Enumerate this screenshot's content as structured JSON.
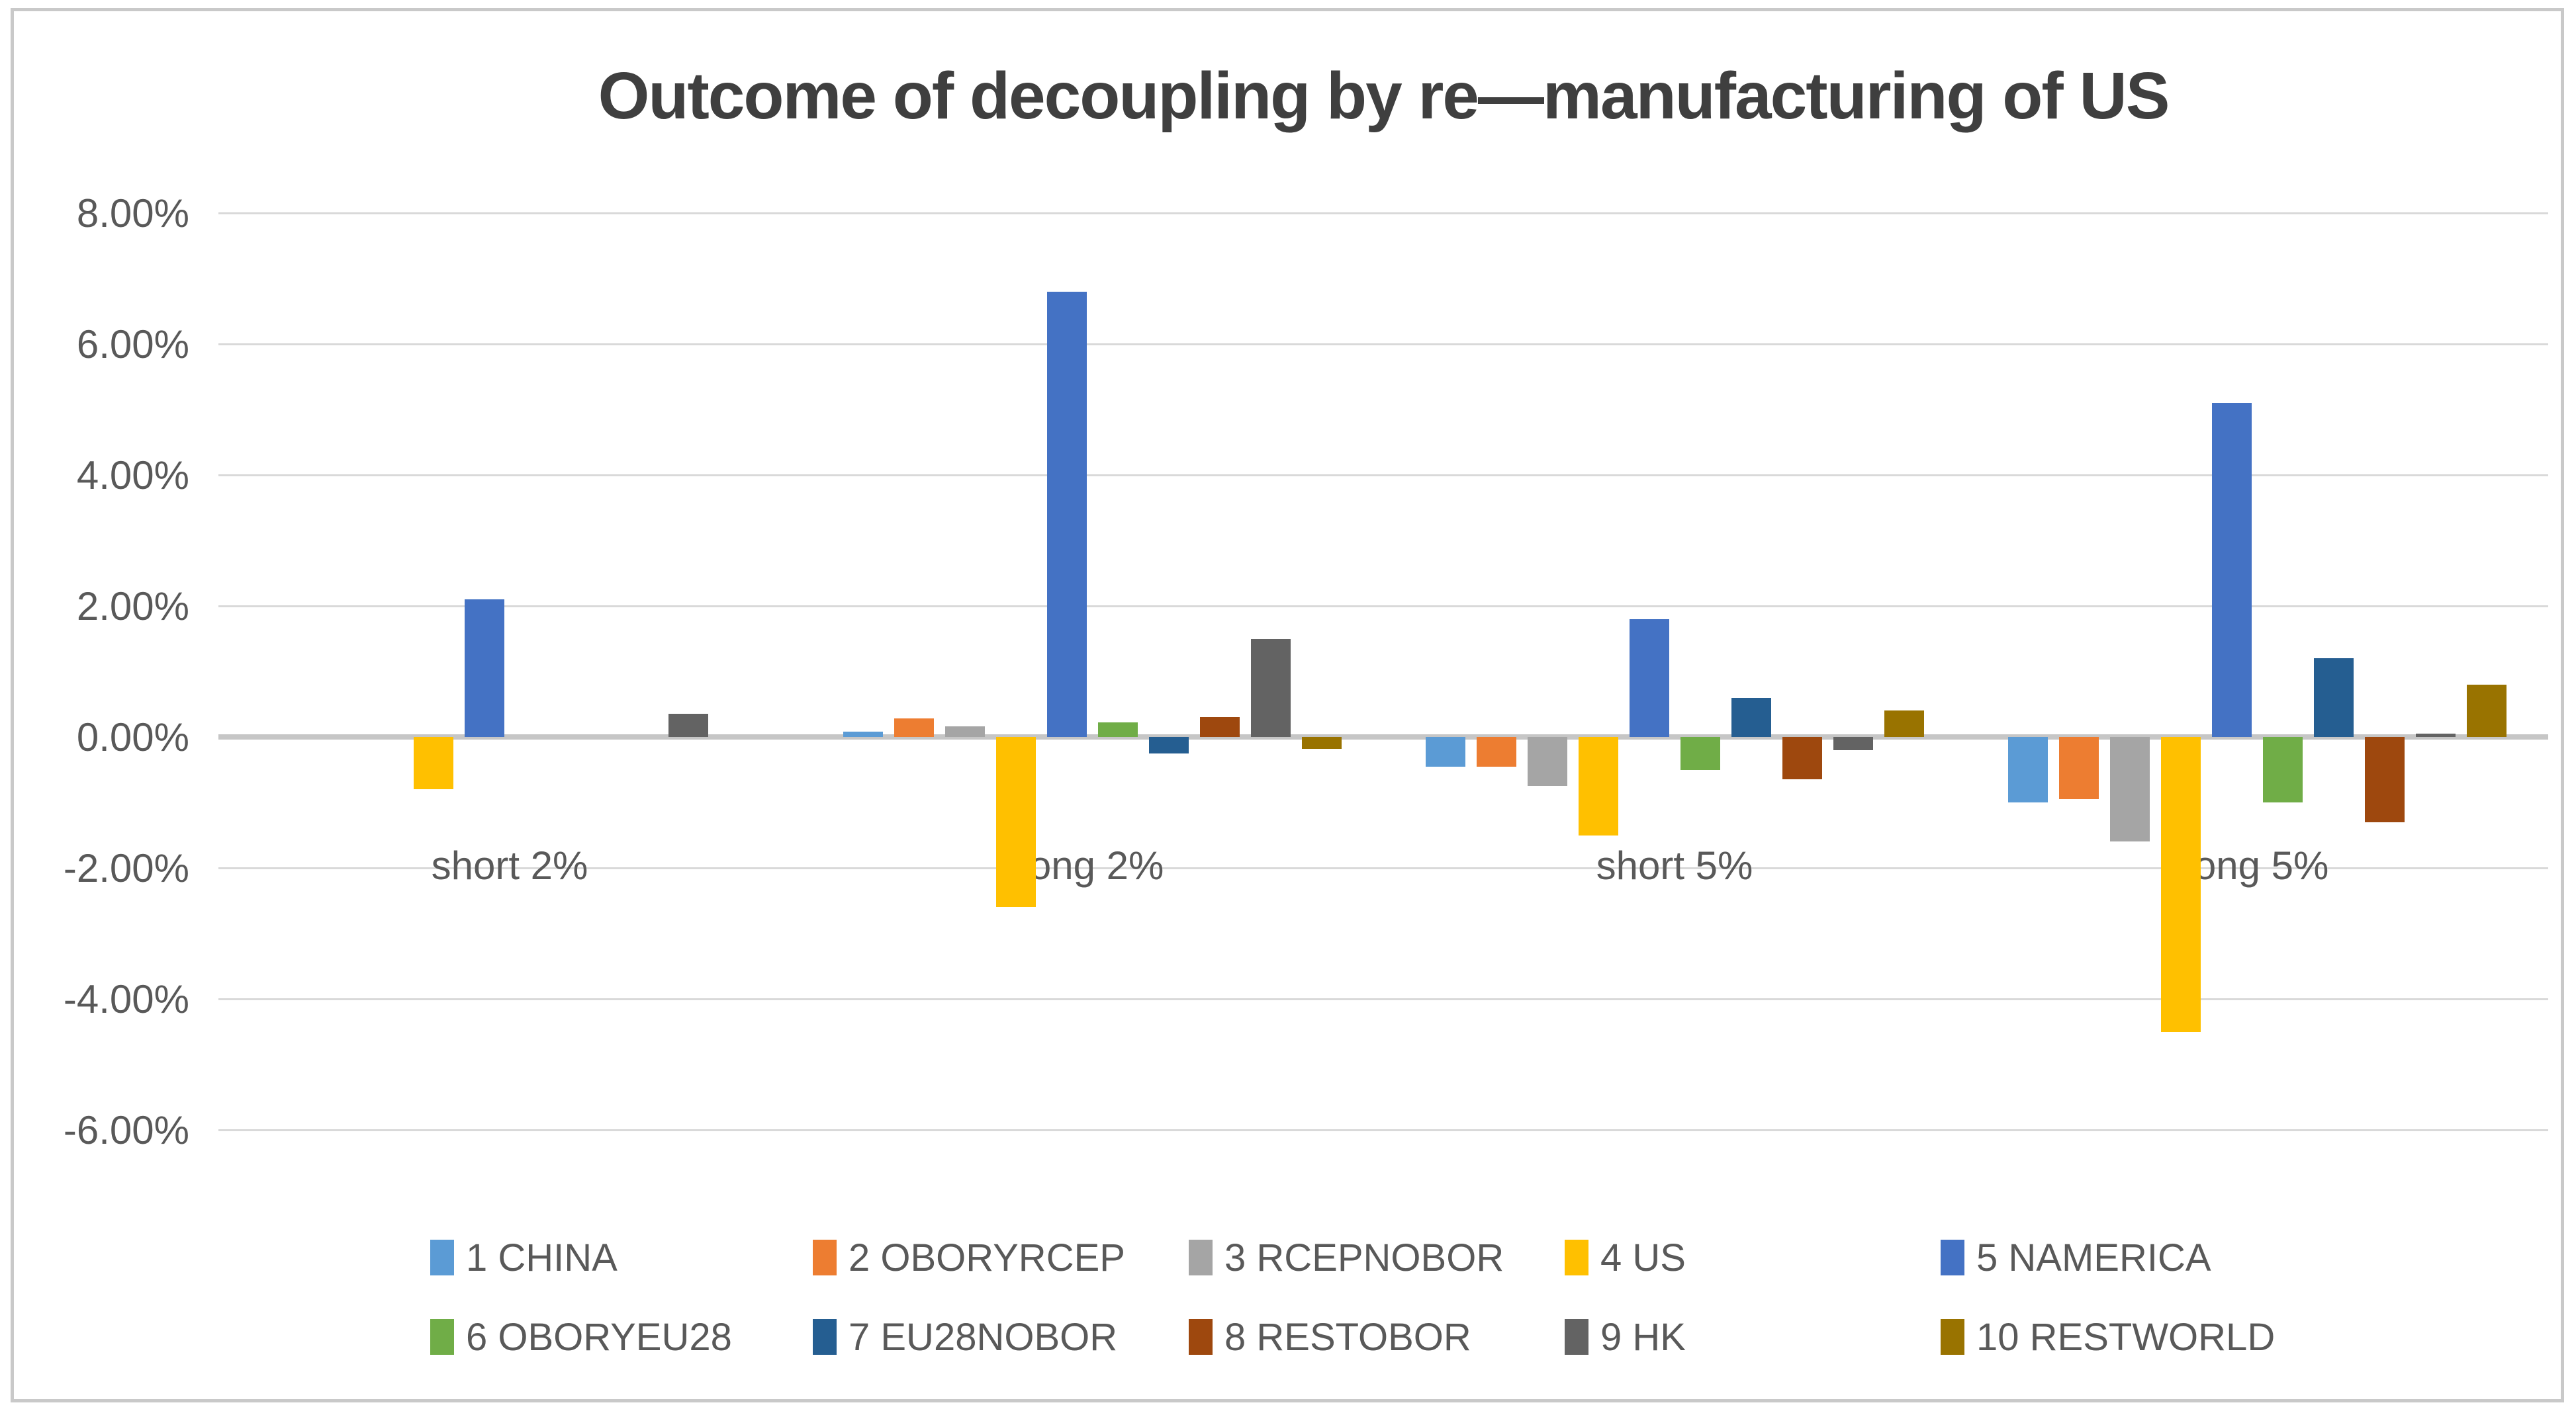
{
  "title": "Outcome of decoupling by re—manufacturing of US",
  "chart_data": {
    "type": "bar",
    "title": "Outcome of decoupling by re—manufacturing of US",
    "xlabel": "",
    "ylabel": "",
    "categories": [
      "short 2%",
      "long 2%",
      "short 5%",
      "long 5%"
    ],
    "series": [
      {
        "name": "1 CHINA",
        "color": "#5B9BD5",
        "values": [
          0,
          0.08,
          -0.45,
          -1.0
        ]
      },
      {
        "name": "2 OBORYRCEP",
        "color": "#ED7D31",
        "values": [
          0,
          0.28,
          -0.45,
          -0.95
        ]
      },
      {
        "name": "3 RCEPNOBOR",
        "color": "#A5A5A5",
        "values": [
          0,
          0.16,
          -0.75,
          -1.6
        ]
      },
      {
        "name": "4 US",
        "color": "#FFC000",
        "values": [
          -0.8,
          -2.6,
          -1.5,
          -4.5
        ]
      },
      {
        "name": "5 NAMERICA",
        "color": "#4472C4",
        "values": [
          2.1,
          6.8,
          1.8,
          5.1
        ]
      },
      {
        "name": "6 OBORYEU28",
        "color": "#70AD47",
        "values": [
          0,
          0.22,
          -0.5,
          -1.0
        ]
      },
      {
        "name": "7 EU28NOBOR",
        "color": "#255E91",
        "values": [
          0,
          -0.25,
          0.6,
          1.2
        ]
      },
      {
        "name": "8 RESTOBOR",
        "color": "#9E480E",
        "values": [
          0,
          0.3,
          -0.65,
          -1.3
        ]
      },
      {
        "name": "9 HK",
        "color": "#636363",
        "values": [
          0.35,
          1.5,
          -0.2,
          0.05
        ]
      },
      {
        "name": "10 RESTWORLD",
        "color": "#997300",
        "values": [
          0,
          -0.18,
          0.4,
          0.8
        ]
      }
    ],
    "y_axis": {
      "ticks": [
        8,
        6,
        4,
        2,
        0,
        -2,
        -4,
        -6
      ],
      "tick_labels": [
        "8.00%",
        "6.00%",
        "4.00%",
        "2.00%",
        "0.00%",
        "-2.00%",
        "-4.00%",
        "-6.00%"
      ],
      "ylim": [
        -6.9,
        8.6
      ],
      "unit": "percent"
    },
    "grid": true,
    "legend_position": "bottom",
    "legend_rows": [
      [
        0,
        1,
        2,
        3,
        4
      ],
      [
        5,
        6,
        7,
        8,
        9
      ]
    ]
  },
  "colors": {
    "background": "#FFFFFF",
    "frame_border": "#C9C9C9",
    "gridline": "#D9D9D9",
    "zero_line": "#C6C6C6",
    "title_text": "#3F3F3F",
    "axis_text": "#595959"
  }
}
